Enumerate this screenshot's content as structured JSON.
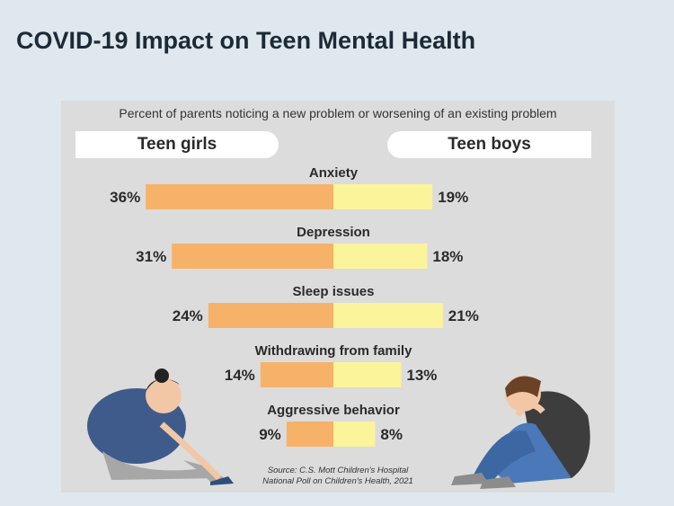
{
  "page": {
    "title": "COVID-19 Impact on Teen Mental Health"
  },
  "chart_data": {
    "type": "bar",
    "title": "Percent of parents noticing a new problem or worsening of an existing problem",
    "categories": [
      "Anxiety",
      "Depression",
      "Sleep issues",
      "Withdrawing from family",
      "Aggressive behavior"
    ],
    "series": [
      {
        "name": "Teen girls",
        "values": [
          36,
          31,
          24,
          14,
          9
        ],
        "color": "#f7b26a"
      },
      {
        "name": "Teen boys",
        "values": [
          19,
          18,
          21,
          13,
          8
        ],
        "color": "#fbf49a"
      }
    ],
    "value_format": "{v}%",
    "orientation": "horizontal-diverging",
    "source": [
      "Source: C.S. Mott Children's Hospital",
      "National Poll on Children's Health, 2021"
    ]
  },
  "illustrations": {
    "left": "sad-girl-sitting-icon",
    "right": "sad-boy-sitting-icon",
    "colors": {
      "girl_shirt": "#3f5b8c",
      "girl_pants": "#a7a7a7",
      "boy_shirt": "#3d3d3d",
      "boy_pants": "#4a78b8",
      "skin": "#f2c7a6"
    }
  }
}
